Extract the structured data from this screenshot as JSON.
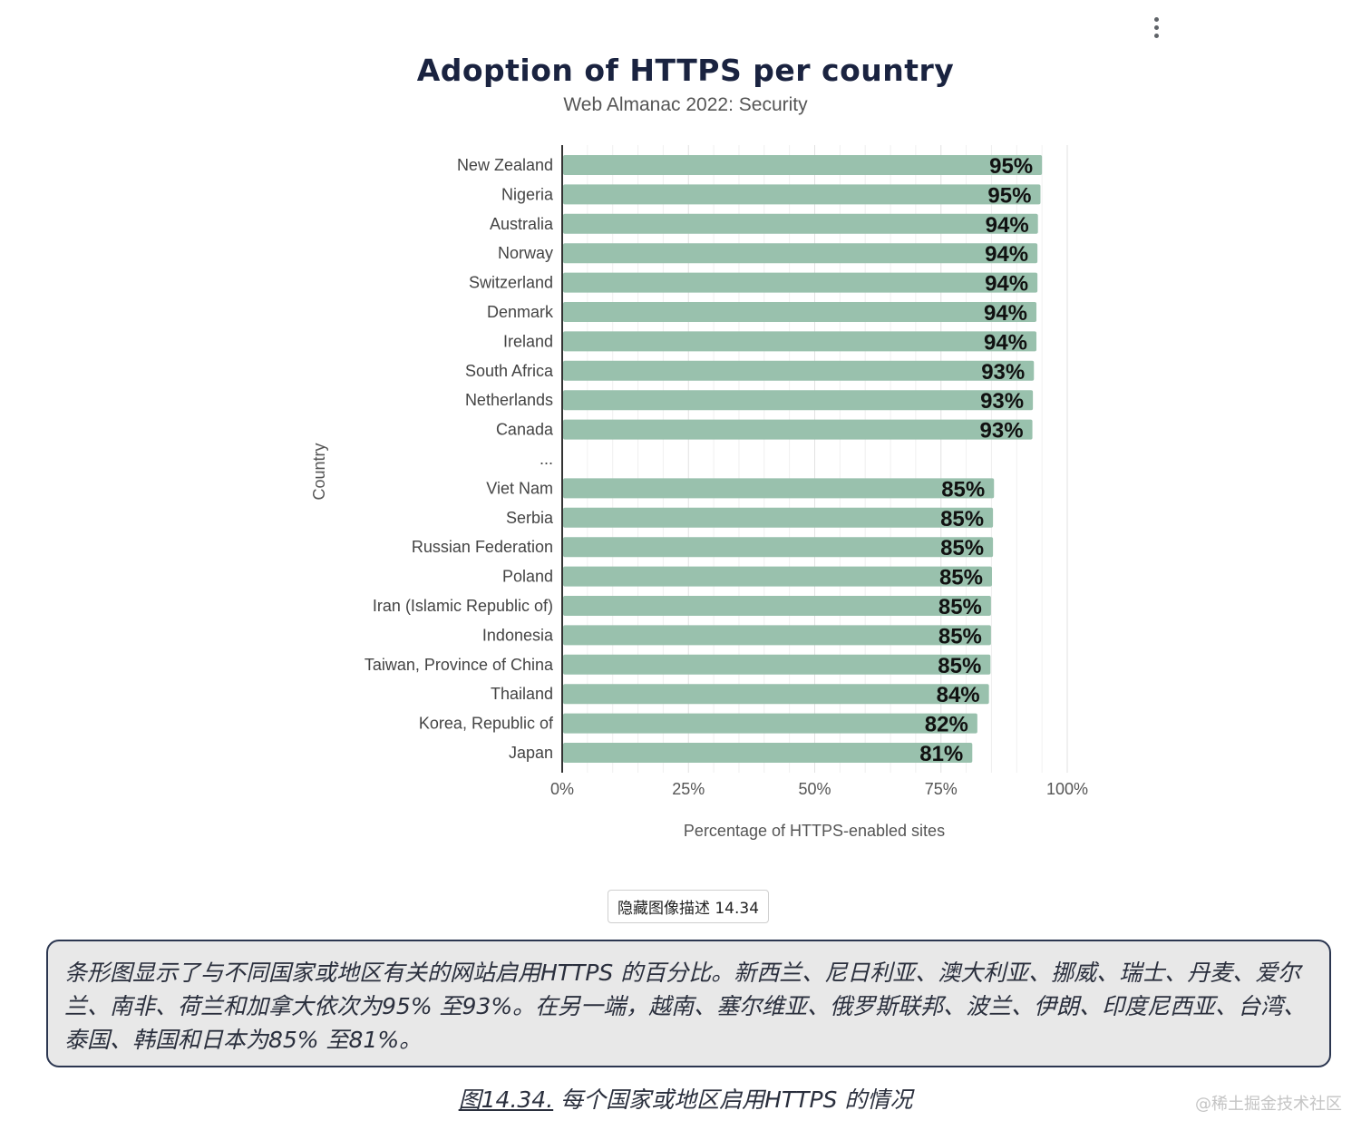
{
  "menu": {
    "icon": "more-vert-icon"
  },
  "chart_data": {
    "type": "bar",
    "orientation": "horizontal",
    "title": "Adoption of HTTPS per country",
    "subtitle": "Web Almanac 2022: Security",
    "xlabel": "Percentage of HTTPS-enabled sites",
    "ylabel": "Country",
    "xlim": [
      0,
      100
    ],
    "x_ticks": [
      "0%",
      "25%",
      "50%",
      "75%",
      "100%"
    ],
    "grid": true,
    "bar_color": "#99c1ad",
    "categories": [
      "New Zealand",
      "Nigeria",
      "Australia",
      "Norway",
      "Switzerland",
      "Denmark",
      "Ireland",
      "South Africa",
      "Netherlands",
      "Canada",
      "...",
      "Viet Nam",
      "Serbia",
      "Russian Federation",
      "Poland",
      "Iran (Islamic Republic of)",
      "Indonesia",
      "Taiwan, Province of China",
      "Thailand",
      "Korea, Republic of",
      "Japan"
    ],
    "values": [
      95,
      94.7,
      94.2,
      94.1,
      94.1,
      93.9,
      93.9,
      93.4,
      93.2,
      93.1,
      null,
      85.5,
      85.3,
      85.3,
      85.1,
      84.9,
      84.9,
      84.8,
      84.5,
      82.2,
      81.2
    ],
    "data_labels": [
      "95%",
      "95%",
      "94%",
      "94%",
      "94%",
      "94%",
      "94%",
      "93%",
      "93%",
      "93%",
      "",
      "85%",
      "85%",
      "85%",
      "85%",
      "85%",
      "85%",
      "85%",
      "84%",
      "82%",
      "81%"
    ]
  },
  "toggle_button": {
    "label": "隐藏图像描述 14.34"
  },
  "description": {
    "text": "条形图显示了与不同国家或地区有关的网站启用HTTPS 的百分比。新西兰、尼日利亚、澳大利亚、挪威、瑞士、丹麦、爱尔兰、南非、荷兰和加拿大依次为95% 至93%。在另一端，越南、塞尔维亚、俄罗斯联邦、波兰、伊朗、印度尼西亚、台湾、泰国、韩国和日本为85% 至81%。"
  },
  "caption": {
    "figure_ref": "图14.34.",
    "text": " 每个国家或地区启用HTTPS 的情况"
  },
  "watermark": "@稀土掘金技术社区"
}
